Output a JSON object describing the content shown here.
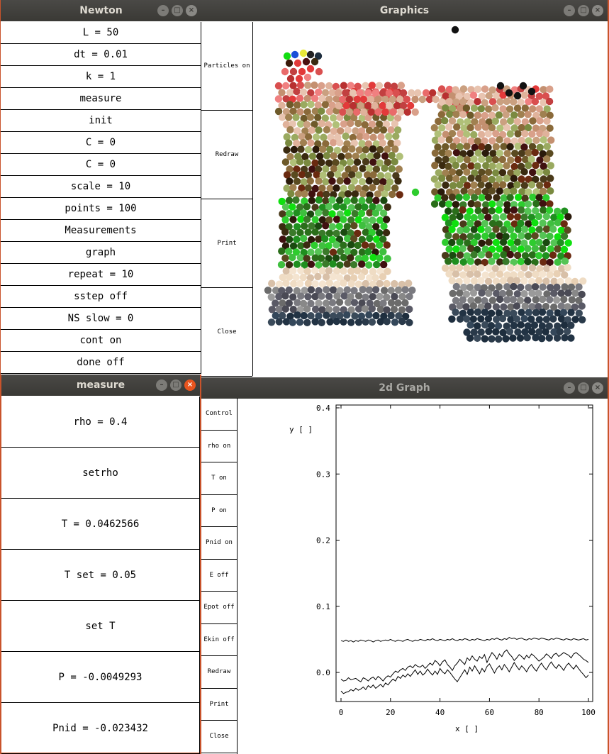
{
  "windows": {
    "newton": {
      "title": "Newton",
      "items": [
        "L = 50",
        "dt = 0.01",
        "k = 1",
        "measure",
        "init",
        "C = 0",
        "C = 0",
        "scale = 10",
        "points = 100",
        "Measurements",
        "graph",
        "repeat = 10",
        "sstep off",
        "NS slow = 0",
        "cont on",
        "done off"
      ]
    },
    "graphics": {
      "title": "Graphics",
      "buttons": [
        "Particles on",
        "Redraw",
        "Print",
        "Close"
      ]
    },
    "measure": {
      "title": "measure",
      "items": [
        "rho = 0.4",
        "setrho",
        "T = 0.0462566",
        "T set = 0.05",
        "set T",
        "P = -0.0049293",
        "Pnid = -0.023432"
      ]
    },
    "graph2d": {
      "title": "2d Graph",
      "buttons": [
        "Control",
        "rho on",
        "T on",
        "P on",
        "Pnid on",
        "E off",
        "Epot off",
        "Ekin off",
        "Redraw",
        "Print",
        "Close"
      ]
    }
  },
  "chart_data": {
    "type": "line",
    "xlabel": "x [ ]",
    "ylabel": "y [ ]",
    "xlim": [
      0,
      100
    ],
    "ylim": [
      -0.04,
      0.4
    ],
    "xticks": [
      0,
      20,
      40,
      60,
      80,
      100
    ],
    "yticks": [
      0.0,
      0.1,
      0.2,
      0.3,
      0.4
    ],
    "ytick_labels": [
      "0.0",
      "0.1",
      "0.2",
      "0.3",
      "0.4"
    ],
    "series": [
      {
        "values": [
          0.048,
          0.047,
          0.049,
          0.047,
          0.048,
          0.046,
          0.048,
          0.047,
          0.049,
          0.048,
          0.047,
          0.049,
          0.048,
          0.046,
          0.048,
          0.049,
          0.047,
          0.048,
          0.049,
          0.048,
          0.05,
          0.048,
          0.047,
          0.049,
          0.048,
          0.047,
          0.049,
          0.05,
          0.048,
          0.047,
          0.049,
          0.048,
          0.05,
          0.049,
          0.048,
          0.05,
          0.049,
          0.051,
          0.049,
          0.048,
          0.05,
          0.049,
          0.048,
          0.05,
          0.049,
          0.051,
          0.049,
          0.048,
          0.05,
          0.049,
          0.051,
          0.05,
          0.048,
          0.05,
          0.049,
          0.051,
          0.05,
          0.049,
          0.048,
          0.05,
          0.049,
          0.051,
          0.05,
          0.052,
          0.05,
          0.049,
          0.051,
          0.05,
          0.053,
          0.051,
          0.052,
          0.05,
          0.051,
          0.052,
          0.05,
          0.049,
          0.051,
          0.05,
          0.052,
          0.051,
          0.05,
          0.052,
          0.051,
          0.05,
          0.049,
          0.051,
          0.05,
          0.052,
          0.051,
          0.05,
          0.049,
          0.051,
          0.05,
          0.049,
          0.051,
          0.05,
          0.049,
          0.05,
          0.051,
          0.049,
          0.05
        ]
      },
      {
        "values": [
          -0.01,
          -0.013,
          -0.012,
          -0.008,
          -0.011,
          -0.01,
          -0.009,
          -0.012,
          -0.014,
          -0.008,
          -0.01,
          -0.013,
          -0.009,
          -0.007,
          -0.011,
          -0.006,
          -0.009,
          -0.013,
          -0.008,
          -0.005,
          -0.007,
          -0.002,
          0.002,
          0.0,
          0.004,
          0.006,
          0.003,
          0.008,
          0.01,
          0.007,
          0.012,
          0.009,
          0.008,
          0.011,
          0.006,
          0.01,
          0.014,
          0.011,
          0.018,
          0.015,
          0.01,
          0.016,
          0.019,
          0.012,
          0.008,
          0.003,
          0.01,
          0.014,
          0.02,
          0.016,
          0.012,
          0.022,
          0.018,
          0.025,
          0.02,
          0.017,
          0.024,
          0.021,
          0.027,
          0.015,
          0.023,
          0.03,
          0.026,
          0.02,
          0.028,
          0.024,
          0.031,
          0.034,
          0.028,
          0.024,
          0.018,
          0.022,
          0.027,
          0.024,
          0.02,
          0.026,
          0.022,
          0.028,
          0.025,
          0.021,
          0.017,
          0.02,
          0.023,
          0.028,
          0.025,
          0.021,
          0.027,
          0.029,
          0.024,
          0.027,
          0.03,
          0.028,
          0.026,
          0.022,
          0.028,
          0.03,
          0.027,
          0.024,
          0.02,
          0.018,
          0.015
        ]
      },
      {
        "values": [
          -0.028,
          -0.032,
          -0.03,
          -0.029,
          -0.026,
          -0.028,
          -0.024,
          -0.027,
          -0.025,
          -0.022,
          -0.026,
          -0.02,
          -0.023,
          -0.019,
          -0.024,
          -0.021,
          -0.018,
          -0.022,
          -0.016,
          -0.019,
          -0.014,
          -0.01,
          -0.013,
          -0.006,
          -0.009,
          -0.004,
          -0.007,
          -0.002,
          -0.006,
          -0.001,
          0.004,
          -0.003,
          0.002,
          -0.004,
          -0.001,
          0.005,
          0.0,
          -0.004,
          0.002,
          -0.003,
          0.006,
          0.001,
          -0.002,
          0.004,
          0.0,
          -0.005,
          -0.01,
          -0.014,
          -0.008,
          -0.002,
          0.004,
          -0.003,
          0.008,
          0.002,
          0.01,
          0.004,
          -0.002,
          0.006,
          0.001,
          0.009,
          0.013,
          0.006,
          -0.001,
          0.006,
          0.01,
          0.004,
          0.012,
          0.007,
          0.001,
          0.008,
          0.015,
          0.009,
          0.004,
          0.01,
          0.006,
          0.001,
          0.008,
          0.012,
          0.006,
          0.002,
          0.009,
          0.014,
          0.008,
          0.004,
          0.011,
          0.016,
          0.01,
          0.006,
          0.012,
          0.008,
          0.003,
          0.01,
          0.014,
          0.009,
          0.005,
          0.011,
          0.006,
          0.001,
          -0.003,
          -0.008,
          -0.004
        ]
      }
    ]
  }
}
